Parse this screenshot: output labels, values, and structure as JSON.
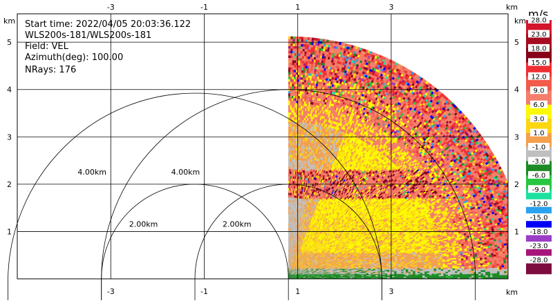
{
  "info": {
    "start_time": "Start time: 2022/04/05 20:03:36.122",
    "site": "WLS200s-181/WLS200s-181",
    "field": "Field: VEL",
    "azimuth": "Azimuth(deg): 100.00",
    "nrays": "NRays: 176"
  },
  "chart_data": {
    "type": "heatmap",
    "projection": "polar-sector",
    "title": "",
    "xlabel": "km",
    "ylabel": "km",
    "xlim": [
      -5.0,
      5.5
    ],
    "ylim": [
      0.0,
      5.6
    ],
    "x_ticks": [
      {
        "value": -3,
        "label": "-3"
      },
      {
        "value": -1,
        "label": "-1"
      },
      {
        "value": 1,
        "label": "1"
      },
      {
        "value": 3,
        "label": "3"
      }
    ],
    "y_ticks": [
      {
        "value": 1,
        "label": "1"
      },
      {
        "value": 2,
        "label": "2"
      },
      {
        "value": 3,
        "label": "3"
      },
      {
        "value": 4,
        "label": "4"
      },
      {
        "value": 5,
        "label": "5"
      }
    ],
    "unit_label_top": "km",
    "unit_label_bottom": "km",
    "grid": true,
    "sector": {
      "origin": [
        0.8,
        0.0
      ],
      "max_range_km": 5.1,
      "azimuth_start_deg": 0,
      "azimuth_end_deg": 90
    },
    "range_rings": [
      {
        "center": [
          0.8,
          0.0
        ],
        "radius": 2.0,
        "label": "2.00km"
      },
      {
        "center": [
          -1.2,
          0.0
        ],
        "radius": 2.0,
        "label": "2.00km"
      },
      {
        "center": [
          0.8,
          0.0
        ],
        "radius": 4.0,
        "label": "4.00km"
      },
      {
        "center": [
          -1.2,
          0.0
        ],
        "radius": 4.0,
        "label": "4.00km"
      }
    ],
    "colorbar": {
      "unit": "m/s",
      "bins": [
        {
          "label": "28.0",
          "color": "#d2162c"
        },
        {
          "label": "23.0",
          "color": "#a60b1f"
        },
        {
          "label": "18.0",
          "color": "#870018"
        },
        {
          "label": "15.0",
          "color": "#ef2e34"
        },
        {
          "label": "12.0",
          "color": "#f25a4a"
        },
        {
          "label": "9.0",
          "color": "#f47d6b"
        },
        {
          "label": "6.0",
          "color": "#fcfa00"
        },
        {
          "label": "3.0",
          "color": "#fcd610"
        },
        {
          "label": "1.0",
          "color": "#f3a04f"
        },
        {
          "label": "-1.0",
          "color": "#bfbfbf"
        },
        {
          "label": "-3.0",
          "color": "#1d8a26"
        },
        {
          "label": "-6.0",
          "color": "#27c641"
        },
        {
          "label": "-9.0",
          "color": "#1de0a0"
        },
        {
          "label": "-12.0",
          "color": "#2aa2ee"
        },
        {
          "label": "-15.0",
          "color": "#0000f4"
        },
        {
          "label": "-18.0",
          "color": "#9b3dc6"
        },
        {
          "label": "-23.0",
          "color": "#a7157a"
        },
        {
          "label": "-28.0",
          "color": "#7e0d3f"
        }
      ]
    }
  }
}
